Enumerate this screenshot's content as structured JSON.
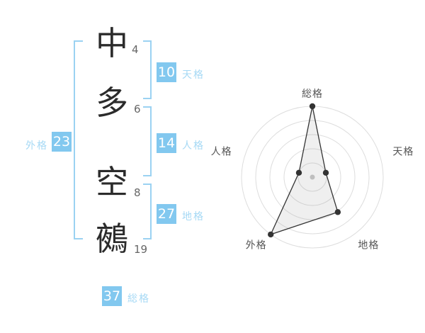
{
  "name_analysis": {
    "characters": [
      {
        "char": "中",
        "strokes": "4"
      },
      {
        "char": "多",
        "strokes": "6"
      },
      {
        "char": "空",
        "strokes": "8"
      },
      {
        "char": "鵺",
        "strokes": "19"
      }
    ],
    "results": {
      "tenkaku": {
        "value": "10",
        "label": "天格"
      },
      "jinkaku": {
        "value": "14",
        "label": "人格"
      },
      "chikaku": {
        "value": "27",
        "label": "地格"
      },
      "gaikaku": {
        "value": "23",
        "label": "外格"
      },
      "soukaku": {
        "value": "37",
        "label": "総格"
      }
    }
  },
  "chart_data": {
    "type": "radar",
    "axes": [
      "総格",
      "天格",
      "地格",
      "外格",
      "人格"
    ],
    "values": [
      100,
      20,
      61,
      100,
      20
    ],
    "max": 100,
    "rings": 5,
    "grid": "circular",
    "legend": "none",
    "title": ""
  },
  "colors": {
    "badge_blue": "#82c8ef",
    "label_blue": "#a6d9f5",
    "bracket_blue": "#9bd2f2",
    "char_dark": "#2b2b2b",
    "stroke_count_gray": "#666666",
    "chart_ring": "#dddddd",
    "chart_line": "#333333",
    "chart_fill": "rgba(120,120,120,0.12)",
    "chart_label": "#555555",
    "chart_center_dot": "#c8c8c8"
  }
}
